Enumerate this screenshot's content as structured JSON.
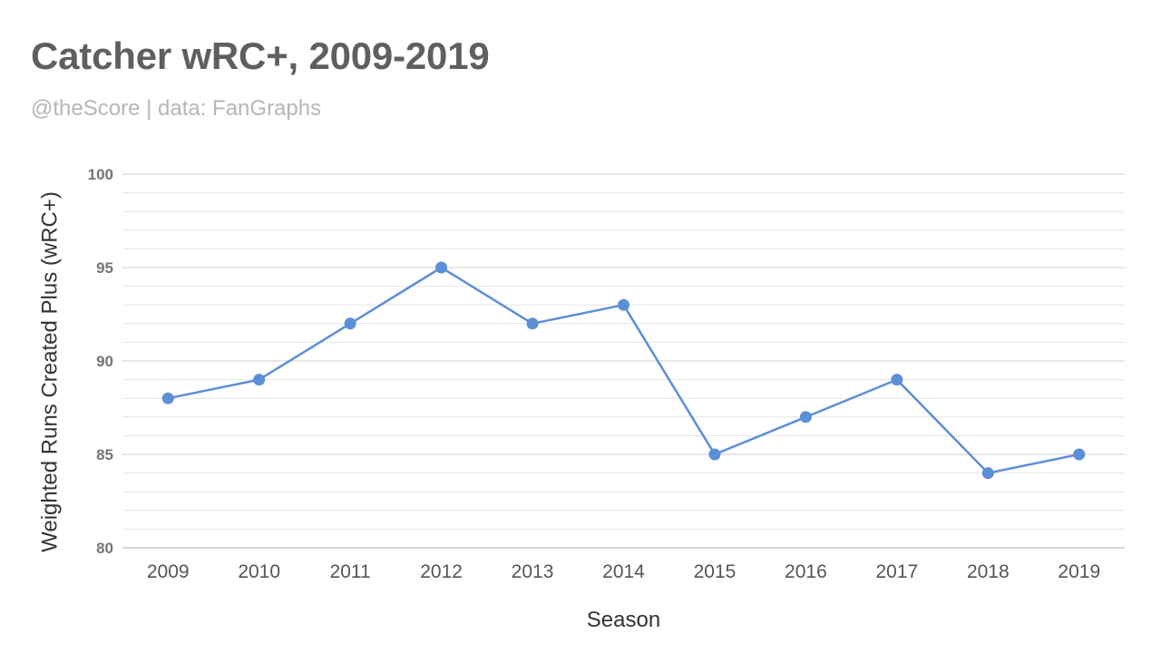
{
  "header": {
    "title": "Catcher wRC+, 2009-2019",
    "subtitle": "@theScore | data: FanGraphs"
  },
  "chart_data": {
    "type": "line",
    "title": "Catcher wRC+, 2009-2019",
    "subtitle": "@theScore | data: FanGraphs",
    "xlabel": "Season",
    "ylabel": "Weighted Runs Created Plus (wRC+)",
    "categories": [
      "2009",
      "2010",
      "2011",
      "2012",
      "2013",
      "2014",
      "2015",
      "2016",
      "2017",
      "2018",
      "2019"
    ],
    "series": [
      {
        "values": [
          88,
          89,
          92,
          95,
          92,
          93,
          85,
          87,
          89,
          84,
          85
        ]
      }
    ],
    "ylim": [
      80,
      100
    ],
    "y_ticks": [
      80,
      85,
      90,
      95,
      100
    ],
    "y_minor_step": 1,
    "grid": true,
    "legend": "none",
    "colors": {
      "line": "#5b8fd6",
      "grid": "#dcdcdc",
      "axis": "#c8c8c8"
    }
  }
}
